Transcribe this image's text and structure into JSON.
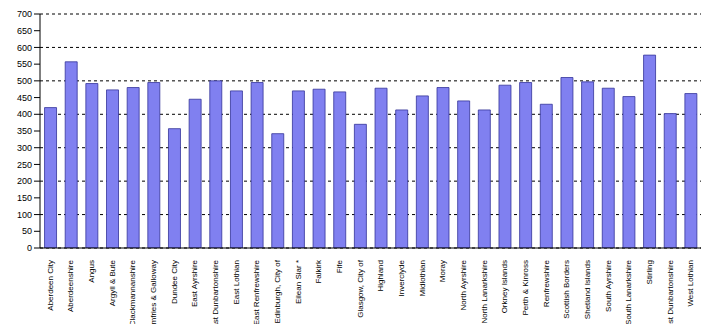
{
  "chart_data": {
    "type": "bar",
    "categories": [
      "Aberdeen City",
      "Aberdeenshire",
      "Angus",
      "Argyll & Bute",
      "Clackmannanshire",
      "Dumfries & Galloway",
      "Dundee City",
      "East Ayrshire",
      "East Dunbartonshire",
      "East Lothian",
      "East Renfrewshire",
      "Edinburgh, City of",
      "Eilean Siar *",
      "Falkirk",
      "Fife",
      "Glasgow, City of",
      "Highland",
      "Inverclyde",
      "Midlothian",
      "Moray",
      "North Ayrshire",
      "North Lanarkshire",
      "Orkney Islands",
      "Perth & Kinross",
      "Renfrewshire",
      "Scottish Borders",
      "Shetland Islands",
      "South Ayrshire",
      "South Lanarkshire",
      "Stirling",
      "West Dunbartonshire",
      "West Lothian"
    ],
    "values": [
      420,
      557,
      492,
      473,
      480,
      495,
      357,
      445,
      500,
      470,
      495,
      342,
      470,
      475,
      467,
      370,
      478,
      413,
      455,
      480,
      440,
      413,
      487,
      495,
      430,
      510,
      497,
      478,
      453,
      577,
      402,
      462
    ],
    "color": "#8080f0",
    "ylim": [
      0,
      700
    ],
    "yticks": [
      0,
      50,
      100,
      150,
      200,
      250,
      300,
      350,
      400,
      450,
      500,
      550,
      600,
      650,
      700
    ],
    "grid": true
  }
}
